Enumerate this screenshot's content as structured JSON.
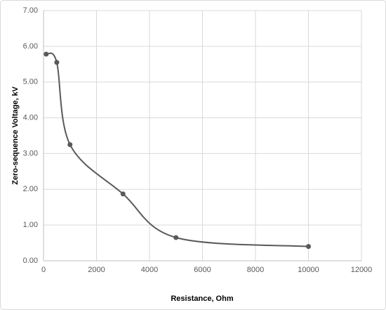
{
  "chart_data": {
    "type": "scatter-smooth",
    "xlabel": "Resistance, Ohm",
    "ylabel": "Zero-sequence Voltage, kV",
    "x": [
      100,
      500,
      1000,
      3000,
      5000,
      10000
    ],
    "series": [
      {
        "color": "#595959",
        "values": [
          5.78,
          5.55,
          3.25,
          1.87,
          0.65,
          0.4
        ]
      }
    ],
    "xlim": [
      0,
      12000
    ],
    "xticks": [
      0,
      2000,
      4000,
      6000,
      8000,
      10000,
      12000
    ],
    "ylim": [
      0,
      7
    ],
    "yticks": [
      {
        "value": 0,
        "label": "0.00"
      },
      {
        "value": 1,
        "label": "1.00"
      },
      {
        "value": 2,
        "label": "2.00"
      },
      {
        "value": 3,
        "label": "3.00"
      },
      {
        "value": 4,
        "label": "4.00"
      },
      {
        "value": 5,
        "label": "5.00"
      },
      {
        "value": 6,
        "label": "6.00"
      },
      {
        "value": 7,
        "label": "7.00"
      }
    ],
    "grid": true
  }
}
